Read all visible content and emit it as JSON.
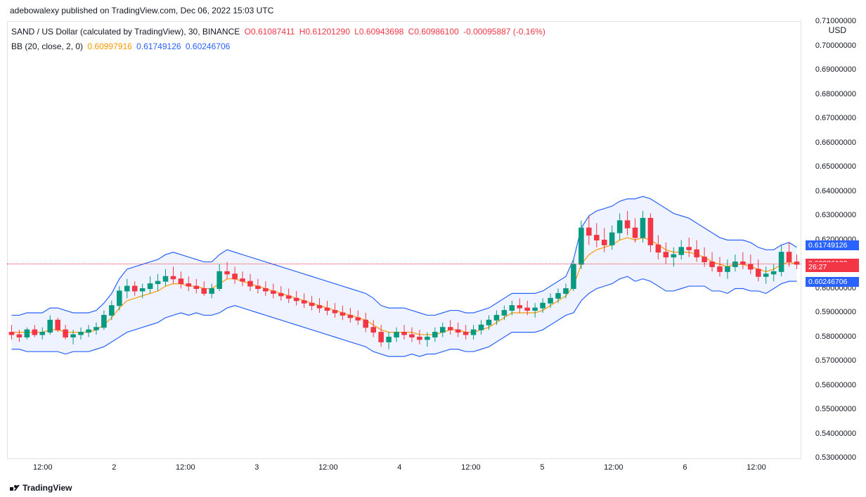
{
  "attribution": "adebowalexy published on TradingView.com, Dec 06, 2022 15:03 UTC",
  "symbol_line": {
    "pair": "SAND / US Dollar (calculated by TradingView), 30, BINANCE",
    "o_label": "O",
    "o": "0.61087411",
    "h_label": "H",
    "h": "0.61201290",
    "l_label": "L",
    "l": "0.60943698",
    "c_label": "C",
    "c": "0.60986100",
    "chg": "-0.00095887 (-0.16%)"
  },
  "bb_line": {
    "label": "BB (20, close, 2, 0)",
    "mid": "0.60997916",
    "upper": "0.61749126",
    "lower": "0.60246706"
  },
  "y_axis": {
    "title": "USD",
    "min": 0.53,
    "max": 0.71,
    "ticks": [
      "0.71000000",
      "0.70000000",
      "0.69000000",
      "0.68000000",
      "0.67000000",
      "0.66000000",
      "0.65000000",
      "0.64000000",
      "0.63000000",
      "0.62000000",
      "0.61000000",
      "0.60000000",
      "0.59000000",
      "0.58000000",
      "0.57000000",
      "0.56000000",
      "0.55000000",
      "0.54000000",
      "0.53000000"
    ]
  },
  "price_tags": {
    "upper": "0.61749126",
    "mid": "0.60997916",
    "close": "0.60986100",
    "countdown": "26:27",
    "lower": "0.60246706"
  },
  "x_axis": {
    "ticks": [
      {
        "pos": 0.045,
        "label": "12:00"
      },
      {
        "pos": 0.135,
        "label": "2"
      },
      {
        "pos": 0.225,
        "label": "12:00"
      },
      {
        "pos": 0.315,
        "label": "3"
      },
      {
        "pos": 0.405,
        "label": "12:00"
      },
      {
        "pos": 0.495,
        "label": "4"
      },
      {
        "pos": 0.585,
        "label": "12:00"
      },
      {
        "pos": 0.675,
        "label": "5"
      },
      {
        "pos": 0.765,
        "label": "12:00"
      },
      {
        "pos": 0.855,
        "label": "6"
      },
      {
        "pos": 0.945,
        "label": "12:00"
      }
    ]
  },
  "watermark": "TradingView",
  "chart": {
    "colors": {
      "up": "#089981",
      "down": "#f23645",
      "bb_line": "#2962ff",
      "bb_mid": "#ff9800",
      "bb_fill": "#2962ff",
      "grid": "#e0e3eb",
      "dotted": "#f23645"
    },
    "close_price": 0.609861,
    "candles": [
      {
        "o": 0.582,
        "h": 0.585,
        "l": 0.579,
        "c": 0.581
      },
      {
        "o": 0.581,
        "h": 0.583,
        "l": 0.578,
        "c": 0.58
      },
      {
        "o": 0.58,
        "h": 0.584,
        "l": 0.579,
        "c": 0.583
      },
      {
        "o": 0.583,
        "h": 0.585,
        "l": 0.58,
        "c": 0.581
      },
      {
        "o": 0.581,
        "h": 0.584,
        "l": 0.579,
        "c": 0.582
      },
      {
        "o": 0.582,
        "h": 0.589,
        "l": 0.581,
        "c": 0.587
      },
      {
        "o": 0.587,
        "h": 0.588,
        "l": 0.582,
        "c": 0.583
      },
      {
        "o": 0.583,
        "h": 0.585,
        "l": 0.579,
        "c": 0.58
      },
      {
        "o": 0.58,
        "h": 0.583,
        "l": 0.577,
        "c": 0.581
      },
      {
        "o": 0.581,
        "h": 0.584,
        "l": 0.579,
        "c": 0.582
      },
      {
        "o": 0.582,
        "h": 0.585,
        "l": 0.58,
        "c": 0.583
      },
      {
        "o": 0.583,
        "h": 0.586,
        "l": 0.581,
        "c": 0.584
      },
      {
        "o": 0.584,
        "h": 0.591,
        "l": 0.583,
        "c": 0.589
      },
      {
        "o": 0.589,
        "h": 0.595,
        "l": 0.587,
        "c": 0.593
      },
      {
        "o": 0.593,
        "h": 0.601,
        "l": 0.591,
        "c": 0.599
      },
      {
        "o": 0.599,
        "h": 0.604,
        "l": 0.596,
        "c": 0.601
      },
      {
        "o": 0.601,
        "h": 0.603,
        "l": 0.597,
        "c": 0.599
      },
      {
        "o": 0.599,
        "h": 0.602,
        "l": 0.596,
        "c": 0.6
      },
      {
        "o": 0.6,
        "h": 0.605,
        "l": 0.598,
        "c": 0.602
      },
      {
        "o": 0.602,
        "h": 0.606,
        "l": 0.599,
        "c": 0.603
      },
      {
        "o": 0.603,
        "h": 0.608,
        "l": 0.601,
        "c": 0.605
      },
      {
        "o": 0.605,
        "h": 0.609,
        "l": 0.602,
        "c": 0.604
      },
      {
        "o": 0.604,
        "h": 0.607,
        "l": 0.6,
        "c": 0.602
      },
      {
        "o": 0.602,
        "h": 0.605,
        "l": 0.599,
        "c": 0.601
      },
      {
        "o": 0.601,
        "h": 0.604,
        "l": 0.598,
        "c": 0.6
      },
      {
        "o": 0.6,
        "h": 0.603,
        "l": 0.597,
        "c": 0.598
      },
      {
        "o": 0.598,
        "h": 0.602,
        "l": 0.596,
        "c": 0.6
      },
      {
        "o": 0.6,
        "h": 0.61,
        "l": 0.599,
        "c": 0.607
      },
      {
        "o": 0.607,
        "h": 0.611,
        "l": 0.604,
        "c": 0.606
      },
      {
        "o": 0.606,
        "h": 0.609,
        "l": 0.602,
        "c": 0.604
      },
      {
        "o": 0.604,
        "h": 0.607,
        "l": 0.601,
        "c": 0.603
      },
      {
        "o": 0.603,
        "h": 0.606,
        "l": 0.599,
        "c": 0.601
      },
      {
        "o": 0.601,
        "h": 0.604,
        "l": 0.598,
        "c": 0.6
      },
      {
        "o": 0.6,
        "h": 0.603,
        "l": 0.597,
        "c": 0.599
      },
      {
        "o": 0.599,
        "h": 0.602,
        "l": 0.596,
        "c": 0.598
      },
      {
        "o": 0.598,
        "h": 0.601,
        "l": 0.595,
        "c": 0.597
      },
      {
        "o": 0.597,
        "h": 0.6,
        "l": 0.594,
        "c": 0.596
      },
      {
        "o": 0.596,
        "h": 0.599,
        "l": 0.593,
        "c": 0.595
      },
      {
        "o": 0.595,
        "h": 0.598,
        "l": 0.592,
        "c": 0.594
      },
      {
        "o": 0.594,
        "h": 0.597,
        "l": 0.591,
        "c": 0.593
      },
      {
        "o": 0.593,
        "h": 0.596,
        "l": 0.59,
        "c": 0.592
      },
      {
        "o": 0.592,
        "h": 0.595,
        "l": 0.589,
        "c": 0.591
      },
      {
        "o": 0.591,
        "h": 0.594,
        "l": 0.588,
        "c": 0.59
      },
      {
        "o": 0.59,
        "h": 0.593,
        "l": 0.587,
        "c": 0.589
      },
      {
        "o": 0.589,
        "h": 0.592,
        "l": 0.586,
        "c": 0.588
      },
      {
        "o": 0.588,
        "h": 0.591,
        "l": 0.585,
        "c": 0.587
      },
      {
        "o": 0.587,
        "h": 0.59,
        "l": 0.582,
        "c": 0.584
      },
      {
        "o": 0.584,
        "h": 0.587,
        "l": 0.58,
        "c": 0.582
      },
      {
        "o": 0.582,
        "h": 0.585,
        "l": 0.576,
        "c": 0.578
      },
      {
        "o": 0.578,
        "h": 0.582,
        "l": 0.575,
        "c": 0.58
      },
      {
        "o": 0.58,
        "h": 0.584,
        "l": 0.578,
        "c": 0.582
      },
      {
        "o": 0.582,
        "h": 0.585,
        "l": 0.579,
        "c": 0.581
      },
      {
        "o": 0.581,
        "h": 0.584,
        "l": 0.578,
        "c": 0.58
      },
      {
        "o": 0.58,
        "h": 0.583,
        "l": 0.577,
        "c": 0.579
      },
      {
        "o": 0.579,
        "h": 0.582,
        "l": 0.576,
        "c": 0.58
      },
      {
        "o": 0.58,
        "h": 0.584,
        "l": 0.578,
        "c": 0.582
      },
      {
        "o": 0.582,
        "h": 0.586,
        "l": 0.58,
        "c": 0.584
      },
      {
        "o": 0.584,
        "h": 0.587,
        "l": 0.581,
        "c": 0.583
      },
      {
        "o": 0.583,
        "h": 0.586,
        "l": 0.58,
        "c": 0.582
      },
      {
        "o": 0.582,
        "h": 0.585,
        "l": 0.579,
        "c": 0.581
      },
      {
        "o": 0.581,
        "h": 0.585,
        "l": 0.579,
        "c": 0.583
      },
      {
        "o": 0.583,
        "h": 0.587,
        "l": 0.581,
        "c": 0.585
      },
      {
        "o": 0.585,
        "h": 0.589,
        "l": 0.583,
        "c": 0.587
      },
      {
        "o": 0.587,
        "h": 0.591,
        "l": 0.585,
        "c": 0.589
      },
      {
        "o": 0.589,
        "h": 0.593,
        "l": 0.587,
        "c": 0.591
      },
      {
        "o": 0.591,
        "h": 0.595,
        "l": 0.589,
        "c": 0.593
      },
      {
        "o": 0.593,
        "h": 0.596,
        "l": 0.59,
        "c": 0.592
      },
      {
        "o": 0.592,
        "h": 0.595,
        "l": 0.589,
        "c": 0.591
      },
      {
        "o": 0.591,
        "h": 0.594,
        "l": 0.588,
        "c": 0.592
      },
      {
        "o": 0.592,
        "h": 0.596,
        "l": 0.59,
        "c": 0.594
      },
      {
        "o": 0.594,
        "h": 0.598,
        "l": 0.592,
        "c": 0.596
      },
      {
        "o": 0.596,
        "h": 0.6,
        "l": 0.594,
        "c": 0.598
      },
      {
        "o": 0.598,
        "h": 0.602,
        "l": 0.596,
        "c": 0.6
      },
      {
        "o": 0.6,
        "h": 0.612,
        "l": 0.599,
        "c": 0.61
      },
      {
        "o": 0.61,
        "h": 0.628,
        "l": 0.608,
        "c": 0.625
      },
      {
        "o": 0.625,
        "h": 0.63,
        "l": 0.618,
        "c": 0.622
      },
      {
        "o": 0.622,
        "h": 0.627,
        "l": 0.617,
        "c": 0.62
      },
      {
        "o": 0.62,
        "h": 0.625,
        "l": 0.615,
        "c": 0.618
      },
      {
        "o": 0.618,
        "h": 0.626,
        "l": 0.616,
        "c": 0.623
      },
      {
        "o": 0.623,
        "h": 0.631,
        "l": 0.62,
        "c": 0.628
      },
      {
        "o": 0.628,
        "h": 0.632,
        "l": 0.622,
        "c": 0.625
      },
      {
        "o": 0.625,
        "h": 0.629,
        "l": 0.619,
        "c": 0.621
      },
      {
        "o": 0.621,
        "h": 0.632,
        "l": 0.619,
        "c": 0.629
      },
      {
        "o": 0.629,
        "h": 0.631,
        "l": 0.615,
        "c": 0.618
      },
      {
        "o": 0.618,
        "h": 0.622,
        "l": 0.612,
        "c": 0.615
      },
      {
        "o": 0.615,
        "h": 0.619,
        "l": 0.61,
        "c": 0.613
      },
      {
        "o": 0.613,
        "h": 0.617,
        "l": 0.609,
        "c": 0.614
      },
      {
        "o": 0.614,
        "h": 0.62,
        "l": 0.612,
        "c": 0.617
      },
      {
        "o": 0.617,
        "h": 0.621,
        "l": 0.613,
        "c": 0.616
      },
      {
        "o": 0.616,
        "h": 0.62,
        "l": 0.611,
        "c": 0.613
      },
      {
        "o": 0.613,
        "h": 0.617,
        "l": 0.609,
        "c": 0.611
      },
      {
        "o": 0.611,
        "h": 0.615,
        "l": 0.607,
        "c": 0.609
      },
      {
        "o": 0.609,
        "h": 0.613,
        "l": 0.605,
        "c": 0.607
      },
      {
        "o": 0.607,
        "h": 0.612,
        "l": 0.604,
        "c": 0.609
      },
      {
        "o": 0.609,
        "h": 0.614,
        "l": 0.607,
        "c": 0.611
      },
      {
        "o": 0.611,
        "h": 0.615,
        "l": 0.608,
        "c": 0.61
      },
      {
        "o": 0.61,
        "h": 0.614,
        "l": 0.606,
        "c": 0.608
      },
      {
        "o": 0.608,
        "h": 0.612,
        "l": 0.603,
        "c": 0.605
      },
      {
        "o": 0.605,
        "h": 0.609,
        "l": 0.602,
        "c": 0.606
      },
      {
        "o": 0.606,
        "h": 0.61,
        "l": 0.603,
        "c": 0.607
      },
      {
        "o": 0.607,
        "h": 0.618,
        "l": 0.605,
        "c": 0.615
      },
      {
        "o": 0.615,
        "h": 0.619,
        "l": 0.609,
        "c": 0.611
      },
      {
        "o": 0.611,
        "h": 0.614,
        "l": 0.608,
        "c": 0.61
      }
    ],
    "bb": {
      "upper": [
        0.589,
        0.589,
        0.59,
        0.59,
        0.59,
        0.592,
        0.592,
        0.591,
        0.59,
        0.59,
        0.59,
        0.591,
        0.594,
        0.598,
        0.604,
        0.608,
        0.609,
        0.61,
        0.611,
        0.612,
        0.614,
        0.615,
        0.614,
        0.613,
        0.612,
        0.611,
        0.611,
        0.614,
        0.616,
        0.615,
        0.614,
        0.613,
        0.612,
        0.611,
        0.61,
        0.609,
        0.608,
        0.607,
        0.606,
        0.605,
        0.604,
        0.603,
        0.602,
        0.601,
        0.6,
        0.599,
        0.598,
        0.596,
        0.593,
        0.592,
        0.592,
        0.592,
        0.591,
        0.59,
        0.589,
        0.589,
        0.59,
        0.591,
        0.591,
        0.59,
        0.59,
        0.591,
        0.592,
        0.594,
        0.596,
        0.598,
        0.598,
        0.598,
        0.598,
        0.599,
        0.601,
        0.603,
        0.605,
        0.612,
        0.625,
        0.63,
        0.632,
        0.633,
        0.634,
        0.636,
        0.637,
        0.637,
        0.638,
        0.637,
        0.635,
        0.633,
        0.631,
        0.63,
        0.629,
        0.627,
        0.625,
        0.623,
        0.621,
        0.62,
        0.62,
        0.62,
        0.619,
        0.617,
        0.616,
        0.616,
        0.618,
        0.619,
        0.617
      ],
      "mid": [
        0.582,
        0.582,
        0.582,
        0.582,
        0.582,
        0.583,
        0.583,
        0.582,
        0.582,
        0.582,
        0.582,
        0.583,
        0.585,
        0.588,
        0.592,
        0.595,
        0.596,
        0.597,
        0.598,
        0.599,
        0.601,
        0.602,
        0.602,
        0.601,
        0.601,
        0.6,
        0.6,
        0.602,
        0.604,
        0.604,
        0.603,
        0.602,
        0.601,
        0.6,
        0.599,
        0.598,
        0.597,
        0.596,
        0.595,
        0.594,
        0.593,
        0.592,
        0.591,
        0.59,
        0.589,
        0.588,
        0.587,
        0.585,
        0.583,
        0.582,
        0.582,
        0.582,
        0.582,
        0.581,
        0.581,
        0.581,
        0.582,
        0.583,
        0.583,
        0.582,
        0.582,
        0.583,
        0.584,
        0.586,
        0.588,
        0.59,
        0.59,
        0.59,
        0.59,
        0.591,
        0.593,
        0.595,
        0.597,
        0.601,
        0.61,
        0.614,
        0.616,
        0.617,
        0.618,
        0.62,
        0.621,
        0.62,
        0.621,
        0.62,
        0.618,
        0.616,
        0.615,
        0.615,
        0.615,
        0.614,
        0.613,
        0.611,
        0.61,
        0.609,
        0.61,
        0.61,
        0.609,
        0.608,
        0.607,
        0.608,
        0.61,
        0.611,
        0.61
      ],
      "lower": [
        0.575,
        0.575,
        0.574,
        0.574,
        0.574,
        0.574,
        0.574,
        0.573,
        0.574,
        0.574,
        0.574,
        0.575,
        0.576,
        0.578,
        0.58,
        0.582,
        0.583,
        0.584,
        0.585,
        0.586,
        0.588,
        0.589,
        0.59,
        0.589,
        0.59,
        0.589,
        0.589,
        0.59,
        0.592,
        0.593,
        0.592,
        0.591,
        0.59,
        0.589,
        0.588,
        0.587,
        0.586,
        0.585,
        0.584,
        0.583,
        0.582,
        0.581,
        0.58,
        0.579,
        0.578,
        0.577,
        0.576,
        0.574,
        0.573,
        0.572,
        0.572,
        0.572,
        0.573,
        0.572,
        0.573,
        0.573,
        0.574,
        0.575,
        0.575,
        0.574,
        0.574,
        0.575,
        0.576,
        0.578,
        0.58,
        0.582,
        0.582,
        0.582,
        0.582,
        0.583,
        0.585,
        0.587,
        0.589,
        0.59,
        0.595,
        0.598,
        0.6,
        0.601,
        0.602,
        0.604,
        0.605,
        0.603,
        0.604,
        0.603,
        0.601,
        0.599,
        0.599,
        0.6,
        0.601,
        0.601,
        0.601,
        0.599,
        0.599,
        0.598,
        0.6,
        0.6,
        0.599,
        0.599,
        0.598,
        0.6,
        0.602,
        0.603,
        0.603
      ]
    }
  }
}
